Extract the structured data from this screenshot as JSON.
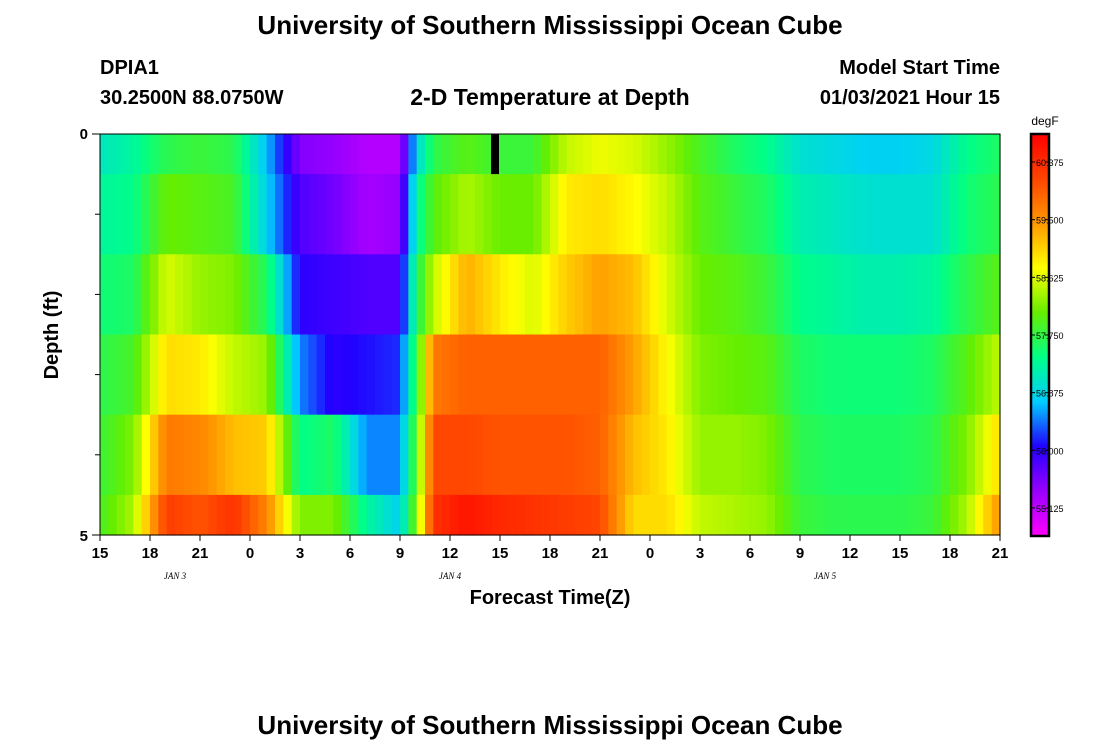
{
  "header": {
    "title": "University of Southern Mississippi Ocean Cube",
    "station": "DPIA1",
    "location": "30.2500N 88.0750W",
    "subtitle": "2-D Temperature at Depth",
    "model_start_label": "Model Start Time",
    "model_start_value": "01/03/2021 Hour 15"
  },
  "footer": {
    "title": "University of Southern Mississippi Ocean Cube"
  },
  "chart_data": {
    "type": "heatmap",
    "title": "2-D Temperature at Depth",
    "xlabel": "Forecast Time(Z)",
    "ylabel": "Depth (ft)",
    "x_tick_labels": [
      "15",
      "18",
      "21",
      "0",
      "3",
      "6",
      "9",
      "12",
      "15",
      "18",
      "21",
      "0",
      "3",
      "6",
      "9",
      "12",
      "15",
      "18",
      "21"
    ],
    "x_date_labels": [
      {
        "label": "JAN 3",
        "tick_index": 1.5
      },
      {
        "label": "JAN 4",
        "tick_index": 7
      },
      {
        "label": "JAN 5",
        "tick_index": 14.5
      }
    ],
    "x_hours_range": [
      0,
      54
    ],
    "y_tick_labels": [
      "0",
      "5"
    ],
    "ylim": [
      0,
      5
    ],
    "depth_layers": [
      "0-0.5 ft",
      "0.5-1.5 ft",
      "1.5-2.5 ft",
      "2.5-3.5 ft",
      "3.5-4.5 ft",
      "4.5-5 ft"
    ],
    "colorbar": {
      "unit": "degF",
      "range": [
        54.7,
        60.8
      ],
      "tick_values": [
        55.125,
        56.0,
        56.875,
        57.75,
        58.625,
        59.5,
        60.375
      ],
      "tick_labels": [
        "55.125",
        "56.000",
        "56.875",
        "57.750",
        "58.625",
        "59.500",
        "60.375"
      ],
      "colors": [
        "#ff00ff",
        "#9900ff",
        "#2200ff",
        "#00ccff",
        "#00ff88",
        "#66ee00",
        "#ffff00",
        "#ff9900",
        "#ff4400",
        "#ff0000"
      ]
    },
    "marker_hour": 23.7,
    "anchor_hours": [
      0,
      2,
      4,
      6,
      8,
      10,
      12,
      14,
      16,
      18,
      19,
      20,
      22,
      24,
      26,
      28,
      30,
      32,
      34,
      36,
      38,
      40,
      42,
      44,
      46,
      48,
      50,
      52,
      54
    ],
    "values": [
      [
        57.1,
        57.3,
        57.7,
        57.8,
        57.7,
        56.7,
        55.5,
        55.4,
        55.2,
        55.2,
        56.9,
        57.7,
        58.0,
        57.8,
        57.8,
        58.5,
        58.7,
        58.6,
        58.3,
        57.9,
        57.6,
        57.4,
        57.0,
        56.9,
        56.8,
        56.8,
        56.9,
        57.4,
        57.6
      ],
      [
        57.3,
        57.4,
        58.1,
        58.0,
        57.9,
        56.8,
        55.8,
        55.6,
        55.3,
        55.4,
        57.3,
        58.0,
        58.4,
        58.1,
        58.1,
        58.9,
        59.0,
        58.8,
        58.5,
        58.0,
        57.8,
        57.6,
        57.2,
        57.1,
        57.0,
        57.0,
        57.0,
        57.5,
        57.7
      ],
      [
        57.5,
        57.6,
        58.6,
        58.3,
        58.2,
        57.6,
        56.0,
        55.9,
        55.8,
        55.8,
        57.6,
        58.5,
        59.3,
        58.9,
        58.6,
        59.1,
        59.4,
        59.2,
        58.6,
        58.1,
        58.0,
        57.8,
        57.4,
        57.3,
        57.2,
        57.2,
        57.3,
        57.7,
        58.0
      ],
      [
        57.7,
        57.9,
        59.0,
        58.9,
        58.5,
        58.3,
        56.5,
        56.0,
        56.1,
        56.2,
        57.8,
        59.7,
        59.9,
        59.9,
        59.9,
        59.9,
        59.9,
        59.4,
        58.8,
        58.2,
        58.1,
        58.0,
        57.6,
        57.5,
        57.5,
        57.5,
        57.6,
        58.0,
        58.5
      ],
      [
        57.8,
        58.2,
        59.7,
        59.6,
        59.2,
        59.1,
        57.4,
        57.6,
        56.5,
        56.5,
        58.0,
        60.1,
        60.1,
        60.0,
        60.0,
        60.0,
        59.9,
        59.2,
        58.9,
        58.3,
        58.3,
        58.2,
        57.7,
        57.6,
        57.6,
        57.6,
        57.7,
        58.2,
        59.0
      ],
      [
        57.9,
        58.4,
        60.2,
        60.0,
        60.3,
        59.6,
        58.2,
        58.2,
        57.3,
        56.8,
        58.2,
        60.3,
        60.6,
        60.4,
        60.3,
        60.2,
        60.1,
        59.0,
        59.0,
        58.5,
        58.4,
        58.3,
        57.8,
        57.7,
        57.7,
        57.7,
        57.8,
        58.4,
        59.5
      ]
    ]
  }
}
